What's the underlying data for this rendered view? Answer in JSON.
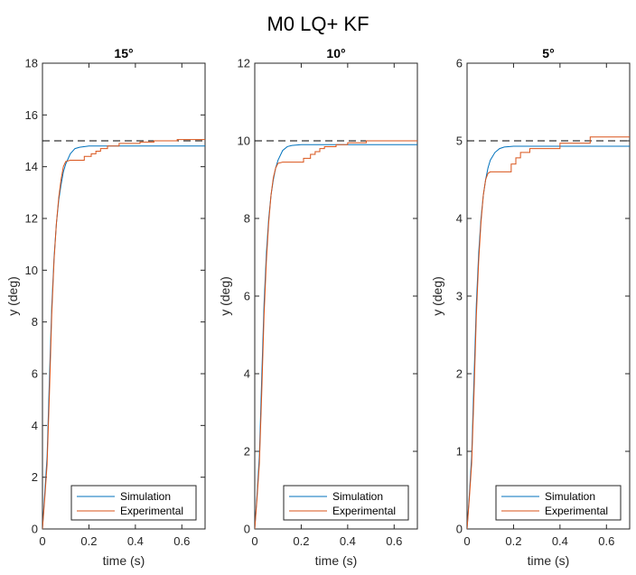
{
  "figure": {
    "title": "M0 LQ+ KF"
  },
  "colors": {
    "simulation": "#0072BD",
    "experimental": "#D95319",
    "reference": "#000000",
    "axes": "#262626"
  },
  "chart_data": [
    {
      "type": "line",
      "title": "15°",
      "xlabel": "time (s)",
      "ylabel": "y (deg)",
      "xlim": [
        0,
        0.7
      ],
      "ylim": [
        0,
        18
      ],
      "xticks": [
        0,
        0.2,
        0.4,
        0.6
      ],
      "xtick_labels": [
        "0",
        "0.2",
        "0.4",
        "0.6"
      ],
      "yticks": [
        0,
        2,
        4,
        6,
        8,
        10,
        12,
        14,
        16,
        18
      ],
      "ytick_labels": [
        "0",
        "2",
        "4",
        "6",
        "8",
        "10",
        "12",
        "14",
        "16",
        "18"
      ],
      "grid": false,
      "legend": {
        "position": "bottom-right",
        "entries": [
          "Simulation",
          "Experimental"
        ]
      },
      "reference": {
        "y": 15,
        "style": "dashed"
      },
      "series": [
        {
          "name": "Simulation",
          "x": [
            0,
            0.01,
            0.02,
            0.03,
            0.04,
            0.05,
            0.06,
            0.07,
            0.08,
            0.09,
            0.1,
            0.12,
            0.14,
            0.16,
            0.2,
            0.25,
            0.3,
            0.4,
            0.5,
            0.6,
            0.7
          ],
          "y": [
            0,
            1.4,
            2.8,
            5.8,
            8.6,
            10.5,
            11.8,
            12.7,
            13.3,
            13.8,
            14.1,
            14.5,
            14.7,
            14.75,
            14.8,
            14.8,
            14.8,
            14.8,
            14.8,
            14.8,
            14.8
          ]
        },
        {
          "name": "Experimental",
          "x": [
            0,
            0.01,
            0.02,
            0.03,
            0.04,
            0.05,
            0.06,
            0.07,
            0.08,
            0.09,
            0.1,
            0.12,
            0.18,
            0.18,
            0.21,
            0.21,
            0.23,
            0.23,
            0.25,
            0.25,
            0.28,
            0.28,
            0.33,
            0.33,
            0.42,
            0.42,
            0.48,
            0.48,
            0.58,
            0.58,
            0.7
          ],
          "y": [
            0,
            1.2,
            2.5,
            5.2,
            8.3,
            10.4,
            11.8,
            12.8,
            13.5,
            14,
            14.2,
            14.25,
            14.25,
            14.4,
            14.4,
            14.5,
            14.5,
            14.6,
            14.6,
            14.7,
            14.7,
            14.8,
            14.8,
            14.9,
            14.9,
            14.95,
            14.95,
            15,
            15,
            15.05,
            15.05
          ]
        }
      ]
    },
    {
      "type": "line",
      "title": "10°",
      "xlabel": "time (s)",
      "ylabel": "y (deg)",
      "xlim": [
        0,
        0.7
      ],
      "ylim": [
        0,
        12
      ],
      "xticks": [
        0,
        0.2,
        0.4,
        0.6
      ],
      "xtick_labels": [
        "0",
        "0.2",
        "0.4",
        "0.6"
      ],
      "yticks": [
        0,
        2,
        4,
        6,
        8,
        10,
        12
      ],
      "ytick_labels": [
        "0",
        "2",
        "4",
        "6",
        "8",
        "10",
        "12"
      ],
      "grid": false,
      "legend": {
        "position": "bottom-right",
        "entries": [
          "Simulation",
          "Experimental"
        ]
      },
      "reference": {
        "y": 10,
        "style": "dashed"
      },
      "series": [
        {
          "name": "Simulation",
          "x": [
            0,
            0.01,
            0.02,
            0.03,
            0.04,
            0.05,
            0.06,
            0.07,
            0.08,
            0.09,
            0.1,
            0.12,
            0.14,
            0.16,
            0.2,
            0.25,
            0.3,
            0.4,
            0.5,
            0.6,
            0.7
          ],
          "y": [
            0,
            0.9,
            1.9,
            3.9,
            5.8,
            7.1,
            8,
            8.6,
            9,
            9.3,
            9.5,
            9.75,
            9.85,
            9.88,
            9.9,
            9.9,
            9.9,
            9.9,
            9.9,
            9.9,
            9.9
          ]
        },
        {
          "name": "Experimental",
          "x": [
            0,
            0.01,
            0.02,
            0.03,
            0.04,
            0.05,
            0.06,
            0.07,
            0.08,
            0.09,
            0.1,
            0.12,
            0.21,
            0.21,
            0.24,
            0.24,
            0.26,
            0.26,
            0.28,
            0.28,
            0.3,
            0.3,
            0.35,
            0.35,
            0.4,
            0.4,
            0.48,
            0.48,
            0.7
          ],
          "y": [
            0,
            0.8,
            1.7,
            3.5,
            5.5,
            6.9,
            7.9,
            8.6,
            9.05,
            9.3,
            9.42,
            9.45,
            9.45,
            9.55,
            9.55,
            9.65,
            9.65,
            9.72,
            9.72,
            9.8,
            9.8,
            9.85,
            9.85,
            9.9,
            9.9,
            9.95,
            9.95,
            10,
            10
          ]
        }
      ]
    },
    {
      "type": "line",
      "title": "5°",
      "xlabel": "time (s)",
      "ylabel": "y (deg)",
      "xlim": [
        0,
        0.7
      ],
      "ylim": [
        0,
        6
      ],
      "xticks": [
        0,
        0.2,
        0.4,
        0.6
      ],
      "xtick_labels": [
        "0",
        "0.2",
        "0.4",
        "0.6"
      ],
      "yticks": [
        0,
        1,
        2,
        3,
        4,
        5,
        6
      ],
      "ytick_labels": [
        "0",
        "1",
        "2",
        "3",
        "4",
        "5",
        "6"
      ],
      "grid": false,
      "legend": {
        "position": "bottom-right",
        "entries": [
          "Simulation",
          "Experimental"
        ]
      },
      "reference": {
        "y": 5,
        "style": "dashed"
      },
      "series": [
        {
          "name": "Simulation",
          "x": [
            0,
            0.01,
            0.02,
            0.03,
            0.04,
            0.05,
            0.06,
            0.07,
            0.08,
            0.09,
            0.1,
            0.12,
            0.14,
            0.16,
            0.2,
            0.25,
            0.3,
            0.4,
            0.5,
            0.6,
            0.7
          ],
          "y": [
            0,
            0.45,
            0.95,
            1.95,
            2.9,
            3.55,
            4,
            4.3,
            4.5,
            4.65,
            4.75,
            4.85,
            4.9,
            4.92,
            4.93,
            4.93,
            4.93,
            4.93,
            4.93,
            4.93,
            4.93
          ]
        },
        {
          "name": "Experimental",
          "x": [
            0,
            0.01,
            0.02,
            0.03,
            0.04,
            0.05,
            0.06,
            0.07,
            0.08,
            0.09,
            0.1,
            0.19,
            0.19,
            0.21,
            0.21,
            0.23,
            0.23,
            0.27,
            0.27,
            0.4,
            0.4,
            0.53,
            0.53,
            0.7
          ],
          "y": [
            0,
            0.4,
            0.85,
            1.75,
            2.75,
            3.45,
            3.95,
            4.3,
            4.5,
            4.58,
            4.6,
            4.6,
            4.7,
            4.7,
            4.78,
            4.78,
            4.85,
            4.85,
            4.9,
            4.9,
            4.97,
            4.97,
            5.05,
            5.05
          ]
        }
      ]
    }
  ]
}
